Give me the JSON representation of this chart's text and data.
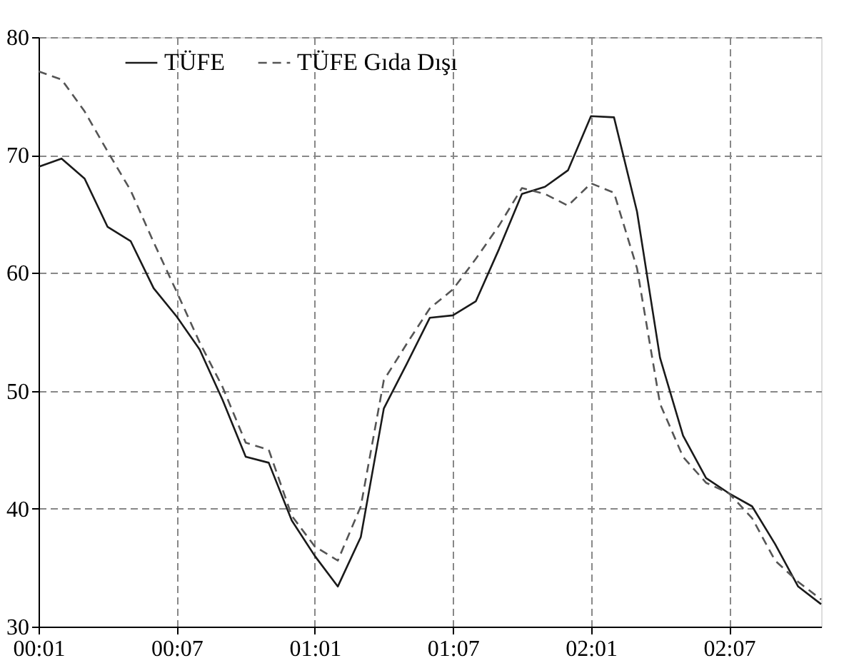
{
  "chart_data": {
    "type": "line",
    "categories": [
      "00:01",
      null,
      null,
      null,
      null,
      null,
      "00:07",
      null,
      null,
      null,
      null,
      null,
      "01:01",
      null,
      null,
      null,
      null,
      null,
      "01:07",
      null,
      null,
      null,
      null,
      null,
      "02:01",
      null,
      null,
      null,
      null,
      null,
      "02:07",
      null,
      null,
      null,
      null
    ],
    "series": [
      {
        "name": "TÜFE",
        "color": "#1a1a1a",
        "line_style": "solid",
        "values": [
          69.0,
          69.7,
          68.0,
          63.9,
          62.7,
          58.7,
          56.3,
          53.5,
          49.2,
          44.4,
          43.9,
          39.0,
          36.0,
          33.4,
          37.6,
          48.5,
          52.3,
          56.2,
          56.4,
          57.6,
          62.0,
          66.7,
          67.3,
          68.7,
          73.3,
          73.2,
          65.2,
          52.8,
          46.2,
          42.6,
          41.3,
          40.2,
          37.0,
          33.4,
          31.9
        ]
      },
      {
        "name": "TÜFE Gıda Dışı",
        "color": "#555555",
        "line_style": "dashed",
        "values": [
          77.1,
          76.4,
          73.7,
          70.3,
          67.0,
          62.6,
          58.4,
          54.1,
          50.3,
          45.6,
          45.0,
          39.4,
          36.8,
          35.6,
          40.2,
          50.9,
          54.0,
          57.0,
          58.6,
          61.2,
          64.0,
          67.2,
          66.7,
          65.7,
          67.6,
          66.8,
          60.4,
          48.9,
          44.4,
          42.2,
          41.3,
          39.2,
          35.6,
          33.8,
          32.3
        ]
      }
    ],
    "ylim": [
      30,
      80
    ],
    "yticks": [
      30,
      40,
      50,
      60,
      70,
      80
    ],
    "grid": true,
    "legend": "top left",
    "marker": "none"
  }
}
